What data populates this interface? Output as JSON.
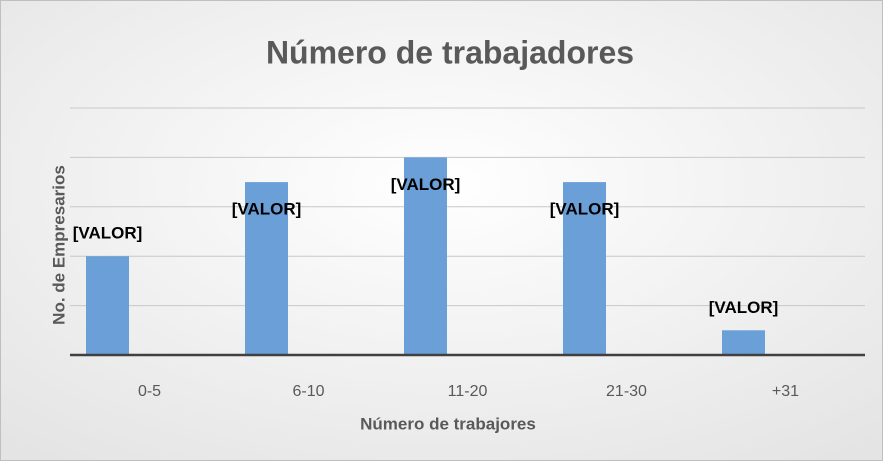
{
  "chart_data": {
    "type": "bar",
    "title": "Número de trabajadores",
    "x_label": "Número de trabajores",
    "y_label": "No. de Empresarios",
    "categories": [
      "0-5",
      "6-10",
      "11-20",
      "21-30",
      "+31"
    ],
    "values": [
      2,
      3.5,
      4,
      3.5,
      0.5
    ],
    "value_labels": [
      "[VALOR]",
      "[VALOR]",
      "[VALOR]",
      "[VALOR]",
      "[VALOR]"
    ],
    "color": "#6a9fd8",
    "ylim": [
      0,
      5
    ],
    "yticks": [
      0,
      1,
      2,
      3,
      4,
      5
    ],
    "grid": true
  }
}
